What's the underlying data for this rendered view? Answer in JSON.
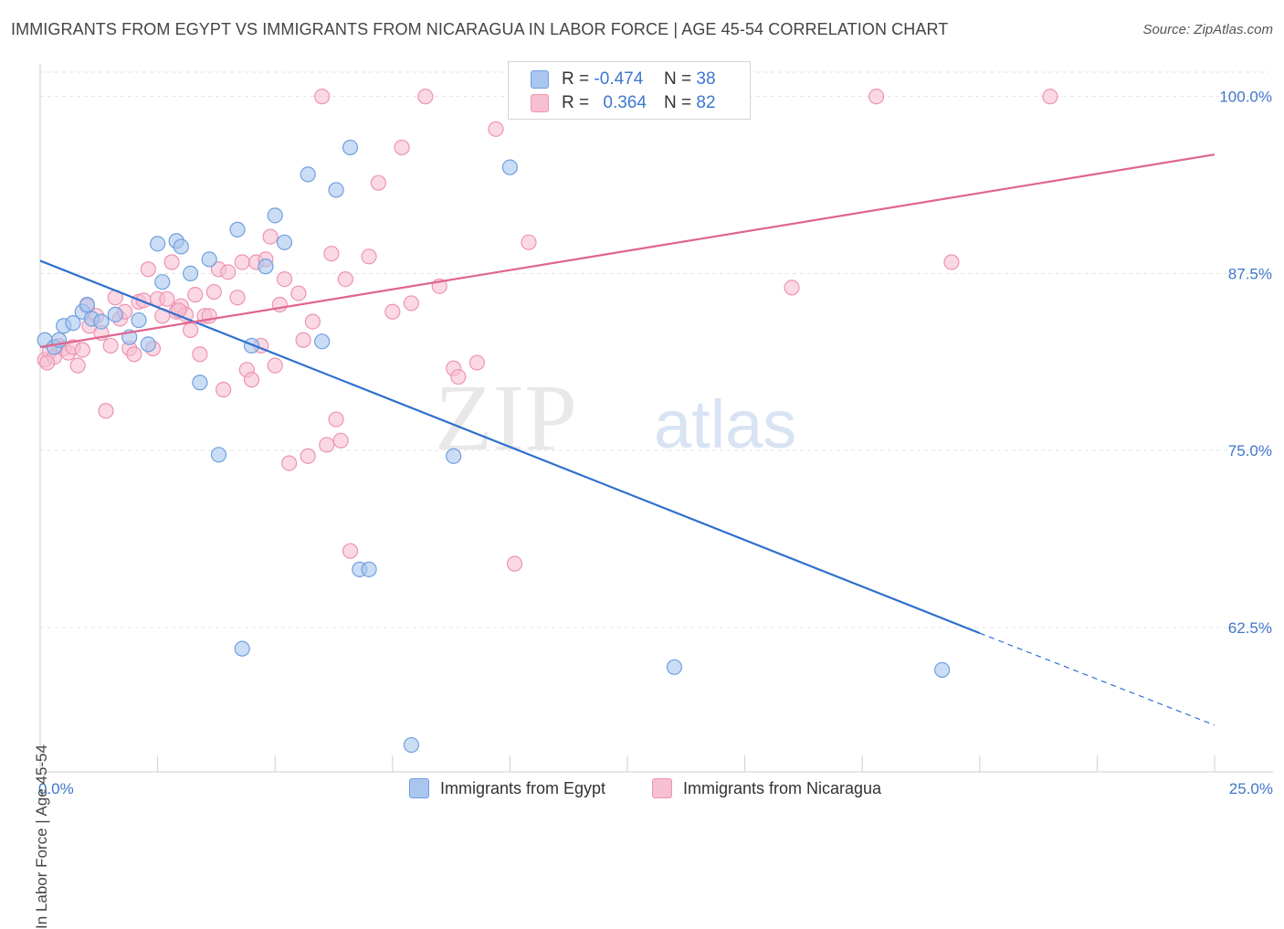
{
  "title": "IMMIGRANTS FROM EGYPT VS IMMIGRANTS FROM NICARAGUA IN LABOR FORCE | AGE 45-54 CORRELATION CHART",
  "source": "Source: ZipAtlas.com",
  "watermark": {
    "zip": "ZIP",
    "atlas": "atlas"
  },
  "colors": {
    "egypt_fill": "#a9c6ef",
    "egypt_stroke": "#6f9fe0",
    "egypt_line": "#2f6fcf",
    "nicaragua_fill": "#f7bfd2",
    "nicaragua_stroke": "#ee93b3",
    "nicaragua_line": "#e0648f",
    "axis_label": "#3f77c9",
    "grid": "#e3e3e3"
  },
  "legend": {
    "rows": [
      {
        "r_label": "R =",
        "r_value": "-0.474",
        "n_label": "N =",
        "n_value": "38"
      },
      {
        "r_label": "R =",
        "r_value": "0.364",
        "n_label": "N =",
        "n_value": "82"
      }
    ]
  },
  "bottom_legend": [
    "Immigrants from Egypt",
    "Immigrants from Nicaragua"
  ],
  "chart_data": {
    "type": "scatter",
    "title": "IMMIGRANTS FROM EGYPT VS IMMIGRANTS FROM NICARAGUA IN LABOR FORCE | AGE 45-54 CORRELATION CHART",
    "xlabel": "",
    "ylabel": "In Labor Force | Age 45-54",
    "xlim": [
      0,
      25
    ],
    "ylim": [
      52.3,
      102.3
    ],
    "x_tick_labels": [
      "0.0%",
      "25.0%"
    ],
    "y_ticks": [
      62.5,
      75.0,
      87.5,
      100.0
    ],
    "y_tick_labels": [
      "62.5%",
      "75.0%",
      "87.5%",
      "100.0%"
    ],
    "grid": true,
    "series": [
      {
        "name": "Immigrants from Egypt",
        "r": -0.474,
        "n": 38,
        "trend": {
          "x0": 0,
          "y0": 88.4,
          "x1": 20,
          "y1": 62.1,
          "dash_to_x": 25,
          "dash_to_y": 55.6
        },
        "points": [
          [
            0.1,
            82.8
          ],
          [
            0.3,
            82.3
          ],
          [
            0.4,
            82.8
          ],
          [
            0.5,
            83.8
          ],
          [
            0.7,
            84.0
          ],
          [
            0.9,
            84.8
          ],
          [
            1.0,
            85.3
          ],
          [
            1.1,
            84.3
          ],
          [
            1.3,
            84.1
          ],
          [
            1.6,
            84.6
          ],
          [
            1.9,
            83.0
          ],
          [
            2.1,
            84.2
          ],
          [
            2.3,
            82.5
          ],
          [
            2.5,
            89.6
          ],
          [
            2.6,
            86.9
          ],
          [
            2.9,
            89.8
          ],
          [
            3.0,
            89.4
          ],
          [
            3.2,
            87.5
          ],
          [
            3.4,
            79.8
          ],
          [
            3.6,
            88.5
          ],
          [
            3.8,
            74.7
          ],
          [
            4.2,
            90.6
          ],
          [
            4.3,
            61.0
          ],
          [
            4.5,
            82.4
          ],
          [
            4.8,
            88.0
          ],
          [
            5.0,
            91.6
          ],
          [
            5.2,
            89.7
          ],
          [
            5.7,
            94.5
          ],
          [
            6.0,
            82.7
          ],
          [
            6.3,
            93.4
          ],
          [
            6.6,
            96.4
          ],
          [
            6.8,
            66.6
          ],
          [
            7.0,
            66.6
          ],
          [
            7.9,
            54.2
          ],
          [
            8.8,
            74.6
          ],
          [
            10.0,
            95.0
          ],
          [
            13.5,
            59.7
          ],
          [
            19.2,
            59.5
          ]
        ]
      },
      {
        "name": "Immigrants from Nicaragua",
        "r": 0.364,
        "n": 82,
        "trend": {
          "x0": 0,
          "y0": 82.3,
          "x1": 25,
          "y1": 95.9
        },
        "points": [
          [
            0.1,
            81.4
          ],
          [
            0.2,
            82.0
          ],
          [
            0.3,
            81.6
          ],
          [
            0.4,
            82.4
          ],
          [
            0.5,
            82.2
          ],
          [
            0.6,
            81.9
          ],
          [
            0.7,
            82.3
          ],
          [
            0.8,
            81.0
          ],
          [
            0.9,
            82.1
          ],
          [
            1.0,
            85.2
          ],
          [
            1.2,
            84.5
          ],
          [
            1.3,
            83.3
          ],
          [
            1.4,
            77.8
          ],
          [
            1.5,
            82.4
          ],
          [
            1.6,
            85.8
          ],
          [
            1.7,
            84.3
          ],
          [
            1.8,
            84.8
          ],
          [
            1.9,
            82.2
          ],
          [
            2.0,
            81.8
          ],
          [
            2.1,
            85.5
          ],
          [
            2.2,
            85.6
          ],
          [
            2.3,
            87.8
          ],
          [
            2.4,
            82.2
          ],
          [
            2.5,
            85.7
          ],
          [
            2.6,
            84.5
          ],
          [
            2.7,
            85.7
          ],
          [
            2.8,
            88.3
          ],
          [
            2.9,
            84.8
          ],
          [
            3.0,
            85.2
          ],
          [
            3.1,
            84.6
          ],
          [
            3.2,
            83.5
          ],
          [
            3.3,
            86.0
          ],
          [
            3.4,
            81.8
          ],
          [
            3.5,
            84.5
          ],
          [
            3.6,
            84.5
          ],
          [
            3.7,
            86.2
          ],
          [
            3.8,
            87.8
          ],
          [
            3.9,
            79.3
          ],
          [
            4.0,
            87.6
          ],
          [
            4.2,
            85.8
          ],
          [
            4.3,
            88.3
          ],
          [
            4.4,
            80.7
          ],
          [
            4.5,
            80.0
          ],
          [
            4.6,
            88.3
          ],
          [
            4.7,
            82.4
          ],
          [
            4.8,
            88.5
          ],
          [
            4.9,
            90.1
          ],
          [
            5.0,
            81.0
          ],
          [
            5.1,
            85.3
          ],
          [
            5.2,
            87.1
          ],
          [
            5.3,
            74.1
          ],
          [
            5.5,
            86.1
          ],
          [
            5.6,
            82.8
          ],
          [
            5.7,
            74.6
          ],
          [
            5.8,
            84.1
          ],
          [
            6.0,
            100.0
          ],
          [
            6.1,
            75.4
          ],
          [
            6.2,
            88.9
          ],
          [
            6.3,
            77.2
          ],
          [
            6.4,
            75.7
          ],
          [
            6.5,
            87.1
          ],
          [
            6.6,
            67.9
          ],
          [
            7.0,
            88.7
          ],
          [
            7.2,
            93.9
          ],
          [
            7.5,
            84.8
          ],
          [
            7.7,
            96.4
          ],
          [
            7.9,
            85.4
          ],
          [
            8.2,
            100.0
          ],
          [
            8.5,
            86.6
          ],
          [
            8.8,
            80.8
          ],
          [
            8.9,
            80.2
          ],
          [
            9.3,
            81.2
          ],
          [
            9.7,
            97.7
          ],
          [
            10.1,
            67.0
          ],
          [
            10.4,
            89.7
          ],
          [
            16.0,
            86.5
          ],
          [
            17.8,
            100.0
          ],
          [
            19.4,
            88.3
          ],
          [
            21.5,
            100.0
          ],
          [
            0.15,
            81.2
          ],
          [
            1.05,
            83.8
          ],
          [
            2.95,
            84.9
          ]
        ]
      }
    ]
  }
}
